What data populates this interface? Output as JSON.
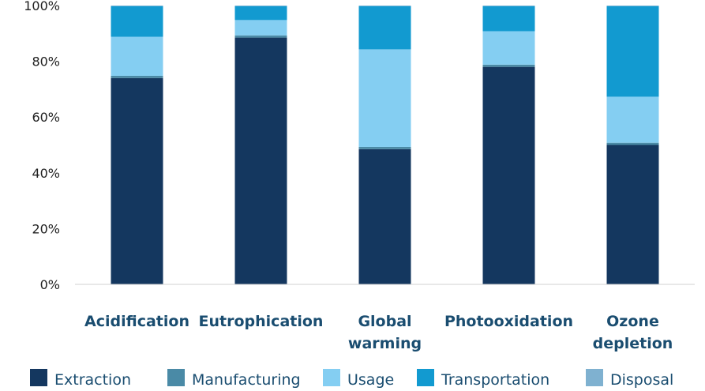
{
  "chart_data": {
    "type": "bar",
    "stacked": true,
    "normalized": true,
    "categories": [
      [
        "Acidification"
      ],
      [
        "Eutrophication"
      ],
      [
        "Global",
        "warming"
      ],
      [
        "Photooxidation"
      ],
      [
        "Ozone",
        "depletion"
      ]
    ],
    "series": [
      {
        "name": "Extraction",
        "color": "#14375f",
        "values": [
          74,
          88.5,
          48.5,
          78,
          50
        ]
      },
      {
        "name": "Manufacturing",
        "color": "#4a8aa6",
        "values": [
          0.8,
          0.8,
          0.8,
          0.8,
          0.8
        ]
      },
      {
        "name": "Usage",
        "color": "#84cef2",
        "values": [
          14,
          5.5,
          35,
          12,
          16.5
        ]
      },
      {
        "name": "Transportation",
        "color": "#129ad0",
        "values": [
          11,
          5,
          15.5,
          9,
          32.5
        ]
      },
      {
        "name": "Disposal",
        "color": "#7fb1d0",
        "values": [
          0.2,
          0.2,
          0.2,
          0.2,
          0.2
        ]
      }
    ],
    "ylim": [
      0,
      100
    ],
    "yticks": [
      0,
      20,
      40,
      60,
      80,
      100
    ],
    "ytick_labels": [
      "0%",
      "20%",
      "40%",
      "60%",
      "80%",
      "100%"
    ],
    "grid": false,
    "legend_position": "bottom"
  }
}
